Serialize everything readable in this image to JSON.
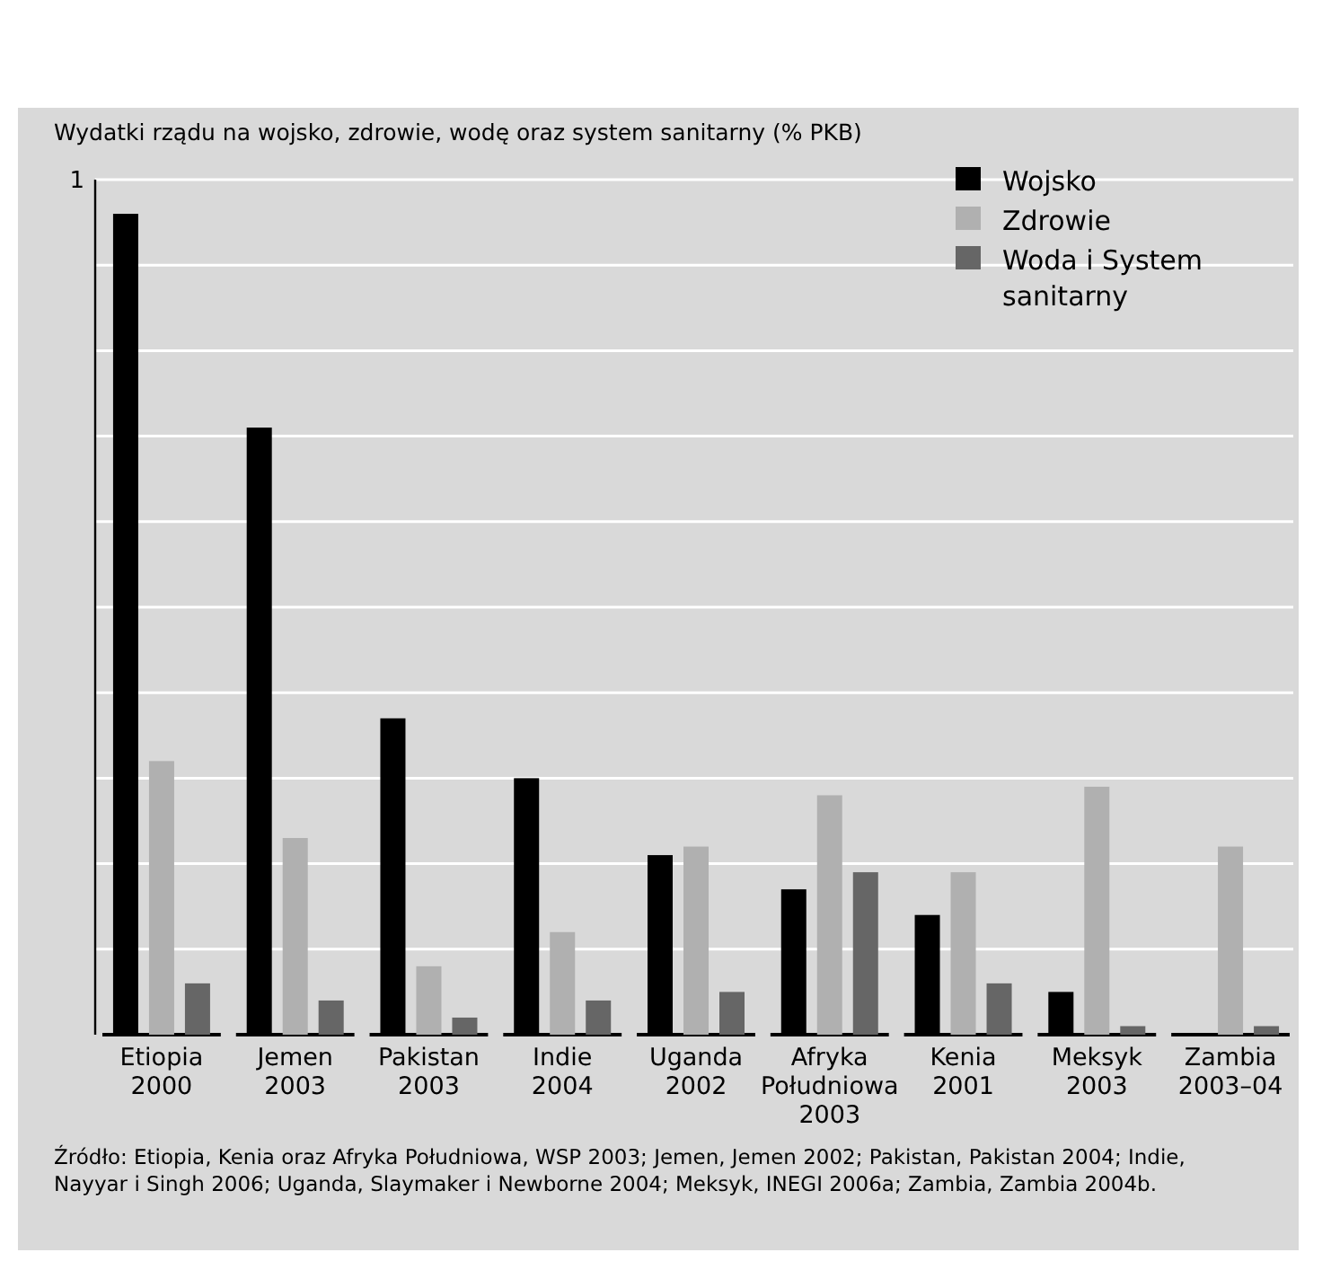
{
  "chart_data": {
    "type": "bar",
    "title": "Wydatki rządu na wojsko, zdrowie, wodę oraz system sanitarny (% PKB)",
    "categories": [
      "Etiopia 2000",
      "Jemen 2003",
      "Pakistan 2003",
      "Indie 2004",
      "Uganda 2002",
      "Afryka Południowa 2003",
      "Kenia 2001",
      "Meksyk 2003",
      "Zambia 2003–04"
    ],
    "series": [
      {
        "name": "Wojsko",
        "color": "#000000",
        "values": [
          0.96,
          0.71,
          0.37,
          0.3,
          0.21,
          0.17,
          0.14,
          0.05,
          null
        ]
      },
      {
        "name": "Zdrowie",
        "color": "#b0b0b0",
        "values": [
          0.32,
          0.23,
          0.08,
          0.12,
          0.22,
          0.28,
          0.19,
          0.29,
          0.22
        ]
      },
      {
        "name": "Woda i System sanitarny",
        "color": "#666666",
        "values": [
          0.06,
          0.04,
          0.02,
          0.04,
          0.05,
          0.19,
          0.06,
          0.01,
          0.01
        ]
      }
    ],
    "ylim": [
      0,
      1
    ],
    "yticks": [
      {
        "value": 0.1,
        "label": null
      },
      {
        "value": 0.2,
        "label": null
      },
      {
        "value": 0.3,
        "label": null
      },
      {
        "value": 0.4,
        "label": null
      },
      {
        "value": 0.5,
        "label": null
      },
      {
        "value": 0.6,
        "label": null
      },
      {
        "value": 0.7,
        "label": null
      },
      {
        "value": 0.8,
        "label": null
      },
      {
        "value": 0.9,
        "label": null
      },
      1
    ],
    "grid": "y",
    "legend": "top right",
    "annotations": [
      "Źródło: Etiopia, Kenia oraz Afryka Południowa, WSP 2003; Jemen, Jemen 2002; Pakistan, Pakistan 2004; Indie, Nayyar i Singh 2006; Uganda, Slaymaker i Newborne 2004; Meksyk, INEGI 2006a; Zambia, Zambia 2004b."
    ]
  }
}
